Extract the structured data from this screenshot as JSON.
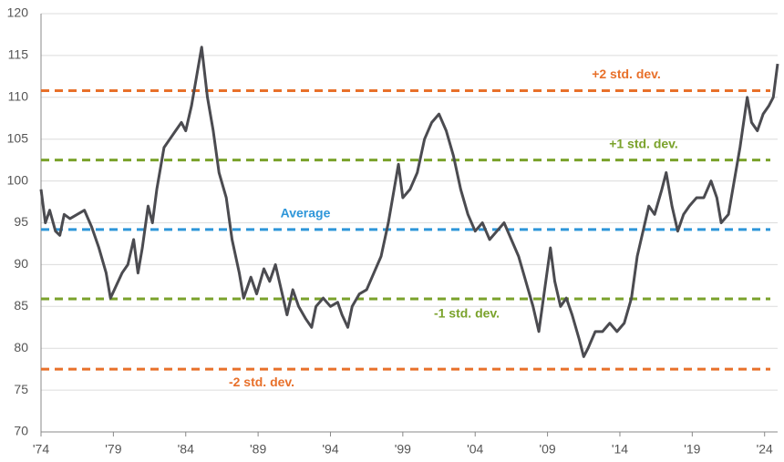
{
  "chart_data": {
    "type": "line",
    "x": [
      1974.0,
      1974.3,
      1974.6,
      1975.0,
      1975.3,
      1975.6,
      1976.0,
      1976.5,
      1977.0,
      1977.5,
      1978.0,
      1978.5,
      1978.8,
      1979.2,
      1979.6,
      1980.0,
      1980.4,
      1980.7,
      1981.0,
      1981.4,
      1981.7,
      1982.0,
      1982.5,
      1982.9,
      1983.3,
      1983.7,
      1984.0,
      1984.4,
      1984.8,
      1985.1,
      1985.5,
      1985.9,
      1986.3,
      1986.8,
      1987.2,
      1987.7,
      1988.0,
      1988.5,
      1988.9,
      1989.4,
      1989.8,
      1990.2,
      1990.6,
      1991.0,
      1991.4,
      1991.8,
      1992.3,
      1992.7,
      1993.0,
      1993.5,
      1994.0,
      1994.5,
      1994.8,
      1995.2,
      1995.5,
      1996.0,
      1996.5,
      1997.0,
      1997.5,
      1998.0,
      1998.4,
      1998.7,
      1999.0,
      1999.5,
      2000.0,
      2000.5,
      2001.0,
      2001.5,
      2002.0,
      2002.5,
      2003.0,
      2003.5,
      2004.0,
      2004.5,
      2005.0,
      2005.5,
      2006.0,
      2006.5,
      2007.0,
      2007.5,
      2008.0,
      2008.4,
      2008.8,
      2009.2,
      2009.5,
      2009.9,
      2010.3,
      2010.7,
      2011.2,
      2011.5,
      2011.8,
      2012.3,
      2012.8,
      2013.3,
      2013.8,
      2014.3,
      2014.8,
      2015.2,
      2015.6,
      2016.0,
      2016.4,
      2016.9,
      2017.2,
      2017.6,
      2018.0,
      2018.4,
      2018.8,
      2019.3,
      2019.8,
      2020.3,
      2020.7,
      2021.0,
      2021.5,
      2021.9,
      2022.3,
      2022.8,
      2023.1,
      2023.5,
      2023.9,
      2024.3,
      2024.6,
      2024.9
    ],
    "series": [
      {
        "color": "#4b4b50",
        "values": [
          99,
          95,
          96.5,
          94,
          93.5,
          96,
          95.5,
          96,
          96.5,
          94.5,
          92,
          89,
          86,
          87.5,
          89,
          90,
          93,
          89,
          92,
          97,
          95,
          99,
          104,
          105,
          106,
          107,
          106,
          109,
          113,
          116,
          110,
          106,
          101,
          98,
          93,
          89,
          86,
          88.5,
          86.5,
          89.5,
          88,
          90,
          87,
          84,
          87,
          85,
          83.5,
          82.5,
          85,
          86,
          85,
          85.5,
          84,
          82.5,
          85,
          86.5,
          87,
          89,
          91,
          95,
          99,
          102,
          98,
          99,
          101,
          105,
          107,
          108,
          106,
          103,
          99,
          96,
          94,
          95,
          93,
          94,
          95,
          93,
          91,
          88,
          85,
          82,
          87,
          92,
          88,
          85,
          86,
          84,
          81,
          79,
          80,
          82,
          82,
          83,
          82,
          83,
          86,
          91,
          94,
          97,
          96,
          99,
          101,
          97,
          94,
          96,
          97,
          98,
          98,
          100,
          98,
          95,
          96,
          100,
          104,
          110,
          107,
          106,
          108,
          109,
          110,
          114
        ]
      }
    ],
    "reference_lines": [
      {
        "label": "+2 std. dev.",
        "value": 110.8,
        "color": "#e8702a"
      },
      {
        "label": "+1 std. dev.",
        "value": 102.5,
        "color": "#7aa22b"
      },
      {
        "label": "Average",
        "value": 94.2,
        "color": "#2e96d9"
      },
      {
        "label": "-1 std. dev.",
        "value": 85.9,
        "color": "#7aa22b"
      },
      {
        "label": "-2 std. dev.",
        "value": 77.5,
        "color": "#e8702a"
      }
    ],
    "xlim": [
      1974,
      2024.9
    ],
    "xticks": [
      {
        "value": 1974,
        "label": "'74"
      },
      {
        "value": 1979,
        "label": "'79"
      },
      {
        "value": 1984,
        "label": "'84"
      },
      {
        "value": 1989,
        "label": "'89"
      },
      {
        "value": 1994,
        "label": "'94"
      },
      {
        "value": 1999,
        "label": "'99"
      },
      {
        "value": 2004,
        "label": "'04"
      },
      {
        "value": 2009,
        "label": "'09"
      },
      {
        "value": 2014,
        "label": "'14"
      },
      {
        "value": 2019,
        "label": "'19"
      },
      {
        "value": 2024,
        "label": "'24"
      }
    ],
    "ylim": [
      70,
      120
    ],
    "yticks": [
      70,
      75,
      80,
      85,
      90,
      95,
      100,
      105,
      110,
      115,
      120
    ],
    "grid": true
  }
}
